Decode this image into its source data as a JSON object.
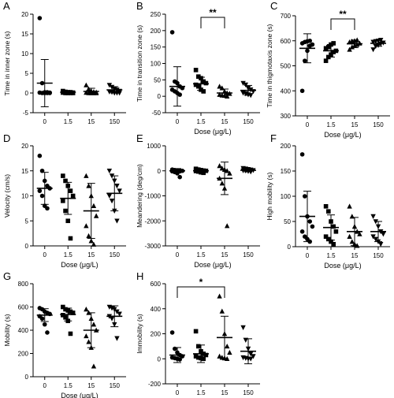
{
  "figure": {
    "shared_xlabel": "Dose (μg/L)"
  },
  "chart_data": [
    {
      "panel": "A",
      "type": "scatter",
      "categories": [
        "0",
        "1.5",
        "15",
        "150"
      ],
      "ylabel": "Time in inner zone (s)",
      "xlabel": "",
      "ylim": [
        -5,
        20
      ],
      "yticks": [
        -5,
        0,
        5,
        10,
        15,
        20
      ],
      "markers": [
        "circle",
        "square",
        "triangle",
        "triangle-down"
      ],
      "groups": [
        {
          "mean": 2.5,
          "sd": 6,
          "points": [
            19,
            2.5,
            0.2,
            0.2,
            0.1,
            0.1,
            0,
            0,
            0,
            0
          ]
        },
        {
          "mean": 0.2,
          "sd": 0.3,
          "points": [
            0.5,
            0.3,
            0.2,
            0.2,
            0.1,
            0.1,
            0,
            0,
            0,
            0
          ]
        },
        {
          "mean": 0.4,
          "sd": 0.8,
          "points": [
            2,
            1,
            0.5,
            0.3,
            0.2,
            0.1,
            0,
            0,
            0,
            0
          ]
        },
        {
          "mean": 0.8,
          "sd": 0.8,
          "points": [
            2,
            1.5,
            1,
            0.8,
            0.5,
            0.3,
            0.2,
            0,
            0,
            0
          ]
        }
      ]
    },
    {
      "panel": "B",
      "type": "scatter",
      "categories": [
        "0",
        "1.5",
        "15",
        "150"
      ],
      "ylabel": "Time in transition zone (s)",
      "xlabel": "Dose (μg/L)",
      "ylim": [
        -50,
        250
      ],
      "yticks": [
        -50,
        0,
        50,
        100,
        150,
        200,
        250
      ],
      "markers": [
        "circle",
        "square",
        "triangle",
        "triangle-down"
      ],
      "groups": [
        {
          "mean": 30,
          "sd": 60,
          "points": [
            195,
            45,
            40,
            30,
            25,
            20,
            15,
            10,
            5
          ]
        },
        {
          "mean": 38,
          "sd": 20,
          "points": [
            80,
            60,
            55,
            45,
            40,
            35,
            30,
            20,
            15
          ]
        },
        {
          "mean": 10,
          "sd": 12,
          "points": [
            30,
            25,
            15,
            10,
            8,
            5,
            3,
            2,
            0
          ]
        },
        {
          "mean": 18,
          "sd": 15,
          "points": [
            40,
            35,
            25,
            20,
            15,
            10,
            8,
            5,
            3
          ]
        }
      ],
      "significance": [
        {
          "from": "1.5",
          "to": "15",
          "label": "**"
        }
      ]
    },
    {
      "panel": "C",
      "type": "scatter",
      "categories": [
        "0",
        "1.5",
        "15",
        "150"
      ],
      "ylabel": "Time in thigmotaxis zone (s)",
      "xlabel": "Dose (μg/L)",
      "ylim": [
        300,
        700
      ],
      "yticks": [
        300,
        400,
        500,
        600,
        700
      ],
      "markers": [
        "circle",
        "square",
        "triangle",
        "triangle-down"
      ],
      "groups": [
        {
          "mean": 570,
          "sd": 58,
          "points": [
            400,
            520,
            560,
            580,
            585,
            590,
            595,
            598,
            600
          ]
        },
        {
          "mean": 560,
          "sd": 25,
          "points": [
            520,
            535,
            545,
            555,
            560,
            570,
            575,
            585,
            590
          ]
        },
        {
          "mean": 588,
          "sd": 15,
          "points": [
            565,
            575,
            580,
            585,
            590,
            595,
            598,
            600,
            603
          ]
        },
        {
          "mean": 590,
          "sd": 12,
          "points": [
            565,
            578,
            582,
            588,
            592,
            595,
            598,
            600,
            603
          ]
        }
      ],
      "significance": [
        {
          "from": "1.5",
          "to": "15",
          "label": "**"
        }
      ]
    },
    {
      "panel": "D",
      "type": "scatter",
      "categories": [
        "0",
        "1.5",
        "15",
        "150"
      ],
      "ylabel": "Velocity (cm/s)",
      "xlabel": "Dose (μg/L)",
      "ylim": [
        0,
        20
      ],
      "yticks": [
        0,
        5,
        10,
        15,
        20
      ],
      "markers": [
        "circle",
        "square",
        "triangle",
        "triangle-down"
      ],
      "groups": [
        {
          "mean": 11.5,
          "sd": 3.2,
          "points": [
            18,
            15,
            13,
            12,
            11.5,
            11,
            10,
            8,
            7.5
          ]
        },
        {
          "mean": 9.5,
          "sd": 3.2,
          "points": [
            14,
            13,
            12,
            11,
            10,
            9,
            7,
            5,
            1.5
          ]
        },
        {
          "mean": 7,
          "sd": 5.5,
          "points": [
            14,
            12,
            10,
            8,
            6,
            4,
            2,
            1,
            0.3
          ]
        },
        {
          "mean": 10.5,
          "sd": 3.5,
          "points": [
            15,
            14,
            13,
            12,
            11,
            10,
            9,
            7,
            5
          ]
        }
      ]
    },
    {
      "panel": "E",
      "type": "scatter",
      "categories": [
        "0",
        "1.5",
        "15",
        "150"
      ],
      "ylabel": "Meandering (deg/cm)",
      "xlabel": "Dose (μg/L)",
      "ylim": [
        -3000,
        1000
      ],
      "yticks": [
        -3000,
        -2000,
        -1000,
        0,
        1000
      ],
      "markers": [
        "circle",
        "square",
        "triangle",
        "triangle-down"
      ],
      "groups": [
        {
          "mean": 0,
          "sd": 90,
          "points": [
            50,
            30,
            20,
            10,
            0,
            -20,
            -50,
            -100,
            -250
          ]
        },
        {
          "mean": 0,
          "sd": 60,
          "points": [
            80,
            50,
            30,
            10,
            0,
            -10,
            -30,
            -60,
            -80
          ]
        },
        {
          "mean": -300,
          "sd": 650,
          "points": [
            200,
            100,
            50,
            0,
            -100,
            -300,
            -500,
            -700,
            -2200
          ]
        },
        {
          "mean": 20,
          "sd": 60,
          "points": [
            100,
            80,
            60,
            40,
            20,
            10,
            0,
            -20,
            -40
          ]
        }
      ]
    },
    {
      "panel": "F",
      "type": "scatter",
      "categories": [
        "0",
        "1.5",
        "15",
        "150"
      ],
      "ylabel": "High mobility (s)",
      "xlabel": "Dose (μg/L)",
      "ylim": [
        0,
        200
      ],
      "yticks": [
        0,
        50,
        100,
        150,
        200
      ],
      "markers": [
        "circle",
        "square",
        "triangle",
        "triangle-down"
      ],
      "groups": [
        {
          "mean": 60,
          "sd": 50,
          "points": [
            183,
            100,
            60,
            50,
            40,
            30,
            20,
            15,
            10
          ]
        },
        {
          "mean": 38,
          "sd": 25,
          "points": [
            80,
            70,
            50,
            40,
            30,
            20,
            15,
            10,
            5
          ]
        },
        {
          "mean": 30,
          "sd": 28,
          "points": [
            80,
            60,
            40,
            30,
            25,
            20,
            10,
            5,
            2
          ]
        },
        {
          "mean": 30,
          "sd": 20,
          "points": [
            60,
            50,
            40,
            30,
            25,
            20,
            15,
            10,
            5
          ]
        }
      ]
    },
    {
      "panel": "G",
      "type": "scatter",
      "categories": [
        "0",
        "1.5",
        "15",
        "150"
      ],
      "ylabel": "Mobility (s)",
      "xlabel": "Dose (μg/L)",
      "ylim": [
        0,
        800
      ],
      "yticks": [
        0,
        200,
        400,
        600,
        800
      ],
      "markers": [
        "circle",
        "square",
        "triangle",
        "triangle-down"
      ],
      "groups": [
        {
          "mean": 530,
          "sd": 55,
          "points": [
            590,
            580,
            560,
            550,
            540,
            520,
            500,
            450,
            380
          ]
        },
        {
          "mean": 535,
          "sd": 55,
          "points": [
            600,
            580,
            570,
            560,
            550,
            530,
            510,
            480,
            370
          ]
        },
        {
          "mean": 400,
          "sd": 150,
          "points": [
            580,
            550,
            500,
            450,
            400,
            350,
            300,
            250,
            90
          ]
        },
        {
          "mean": 520,
          "sd": 90,
          "points": [
            600,
            590,
            580,
            560,
            540,
            520,
            500,
            450,
            330
          ]
        }
      ]
    },
    {
      "panel": "H",
      "type": "scatter",
      "categories": [
        "0",
        "1.5",
        "15",
        "150"
      ],
      "ylabel": "Immobility (s)",
      "xlabel": "Dose (μg/L)",
      "ylim": [
        -200,
        600
      ],
      "yticks": [
        -200,
        0,
        200,
        400,
        600
      ],
      "markers": [
        "circle",
        "square",
        "triangle",
        "triangle-down"
      ],
      "groups": [
        {
          "mean": 30,
          "sd": 60,
          "points": [
            210,
            80,
            50,
            30,
            20,
            10,
            5,
            0,
            -5
          ]
        },
        {
          "mean": 40,
          "sd": 70,
          "points": [
            220,
            100,
            60,
            40,
            30,
            20,
            10,
            5,
            0
          ]
        },
        {
          "mean": 170,
          "sd": 170,
          "points": [
            500,
            380,
            200,
            100,
            50,
            20,
            10,
            5,
            0
          ]
        },
        {
          "mean": 60,
          "sd": 100,
          "points": [
            250,
            150,
            80,
            40,
            20,
            10,
            5,
            0,
            0
          ]
        }
      ],
      "significance": [
        {
          "from": "0",
          "to": "15",
          "label": "*"
        }
      ]
    }
  ]
}
